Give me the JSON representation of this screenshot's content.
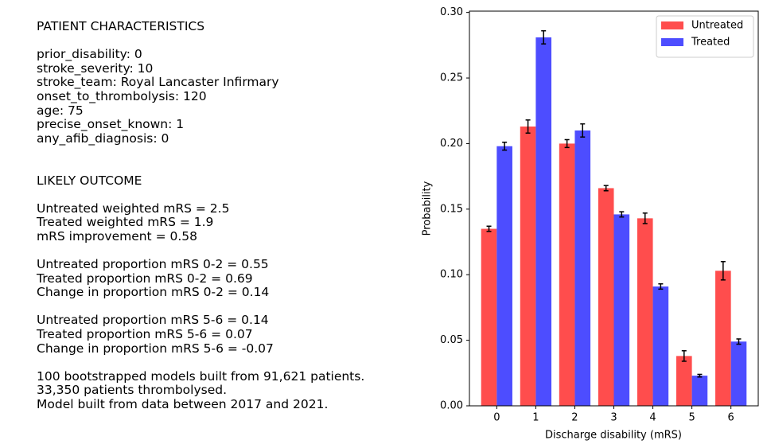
{
  "text_panel": {
    "blocks": [
      [
        "PATIENT CHARACTERISTICS"
      ],
      [
        "prior_disability: 0",
        "stroke_severity: 10",
        "stroke_team: Royal Lancaster Infirmary",
        "onset_to_thrombolysis: 120",
        "age: 75",
        "precise_onset_known: 1",
        "any_afib_diagnosis: 0"
      ],
      [
        "LIKELY OUTCOME"
      ],
      [
        "Untreated weighted mRS = 2.5",
        "Treated weighted mRS = 1.9",
        "mRS improvement = 0.58"
      ],
      [
        "Untreated proportion mRS 0-2 = 0.55",
        "Treated proportion mRS 0-2 = 0.69",
        "Change in proportion mRS 0-2 = 0.14"
      ],
      [
        "Untreated proportion mRS 5-6 = 0.14",
        "Treated proportion mRS 5-6 = 0.07",
        "Change in proportion mRS 5-6 = -0.07"
      ],
      [
        "100 bootstrapped models built from 91,621 patients.",
        "33,350 patients thrombolysed.",
        "Model built from data between 2017 and 2021."
      ]
    ]
  },
  "chart_data": {
    "type": "bar",
    "x_label": "Discharge disability (mRS)",
    "y_label": "Probability",
    "x": [
      0,
      1,
      2,
      3,
      4,
      5,
      6
    ],
    "xlim": [
      -0.7,
      6.7
    ],
    "xticks": [
      0,
      1,
      2,
      3,
      4,
      5,
      6
    ],
    "ylim": [
      0,
      0.301
    ],
    "yticks": [
      {
        "value": 0,
        "label": "0.00"
      },
      {
        "value": 0.05,
        "label": "0.05"
      },
      {
        "value": 0.1,
        "label": "0.10"
      },
      {
        "value": 0.15,
        "label": "0.15"
      },
      {
        "value": 0.2,
        "label": "0.20"
      },
      {
        "value": 0.25,
        "label": "0.25"
      },
      {
        "value": 0.3,
        "label": "0.30"
      }
    ],
    "legend": "upper right",
    "grid": false,
    "series": [
      {
        "name": "Untreated",
        "color": "#ff4d4d",
        "values": [
          0.135,
          0.213,
          0.2,
          0.166,
          0.143,
          0.038,
          0.103
        ],
        "errors": [
          0.002,
          0.005,
          0.003,
          0.002,
          0.004,
          0.004,
          0.007
        ]
      },
      {
        "name": "Treated",
        "color": "#4d4dff",
        "values": [
          0.198,
          0.281,
          0.21,
          0.146,
          0.091,
          0.023,
          0.049
        ],
        "errors": [
          0.003,
          0.005,
          0.005,
          0.002,
          0.002,
          0.001,
          0.002
        ]
      }
    ]
  }
}
